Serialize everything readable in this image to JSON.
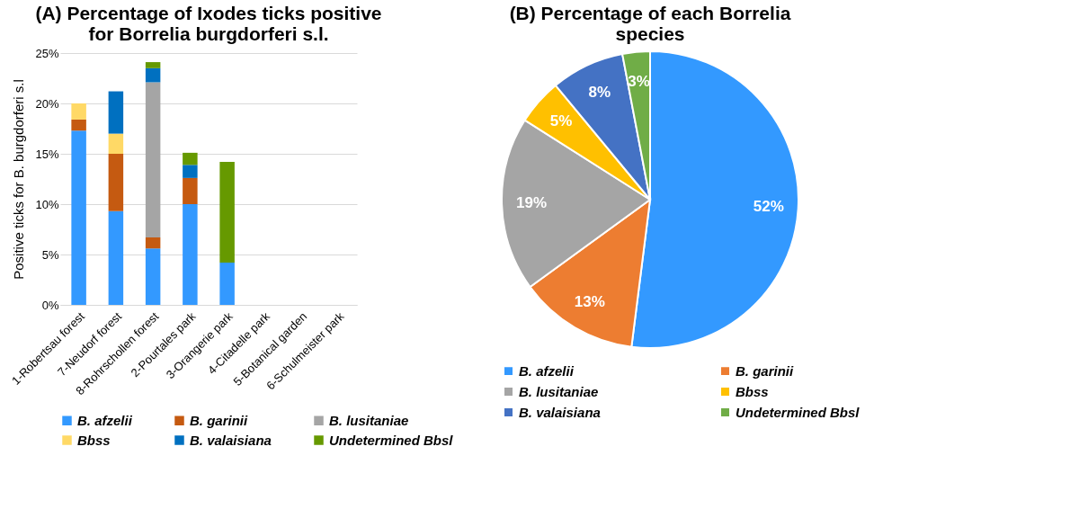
{
  "chart_data": [
    {
      "type": "bar",
      "title": "(A) Percentage of Ixodes ticks positive\nfor Borrelia burgdorferi s.l.",
      "ylabel": "Positive ticks for  B. burgdorferi s.l",
      "categories": [
        "1-Robertsau forest",
        "7-Neudorf forest",
        "8-Rohrschollen forest",
        "2-Pourtales park",
        "3-Orangerie park",
        "4-Citadelle park",
        "5-Botanical garden",
        "6-Schulmeister park"
      ],
      "stacked": true,
      "grid": "y",
      "legend": "bottom",
      "ylim": [
        0,
        25
      ],
      "yticks": [
        {
          "value": 0,
          "label": "0%"
        },
        {
          "value": 5,
          "label": "5%"
        },
        {
          "value": 10,
          "label": "10%"
        },
        {
          "value": 15,
          "label": "15%"
        },
        {
          "value": 20,
          "label": "20%"
        },
        {
          "value": 25,
          "label": "25%"
        }
      ],
      "series": [
        {
          "name": "B. afzelii",
          "color": "#3399ff",
          "values": [
            17.3,
            9.3,
            5.6,
            10.0,
            4.2,
            null,
            null,
            null
          ]
        },
        {
          "name": "B. garinii",
          "color": "#c55a11",
          "values": [
            1.1,
            5.7,
            1.1,
            2.6,
            null,
            null,
            null,
            null
          ]
        },
        {
          "name": "B. lusitaniae",
          "color": "#a5a5a5",
          "values": [
            null,
            null,
            15.4,
            null,
            null,
            null,
            null,
            null
          ]
        },
        {
          "name": "Bbss",
          "color": "#ffd966",
          "values": [
            1.6,
            2.0,
            null,
            null,
            null,
            null,
            null,
            null
          ]
        },
        {
          "name": "B. valaisiana",
          "color": "#0070c0",
          "values": [
            null,
            4.2,
            1.4,
            1.3,
            null,
            null,
            null,
            null
          ]
        },
        {
          "name": "Undetermined Bbsl",
          "color": "#669900",
          "values": [
            null,
            null,
            0.6,
            1.2,
            10.0,
            null,
            null,
            null
          ]
        }
      ]
    },
    {
      "type": "pie",
      "title": "(B) Percentage of each Borrelia\nspecies",
      "legend": "bottom",
      "categories": [
        "B. afzelii",
        "B. garinii",
        "B. lusitaniae",
        "Bbss",
        "B. valaisiana",
        "Undetermined Bbsl"
      ],
      "values": [
        52,
        13,
        19,
        5,
        8,
        3
      ],
      "value_labels": [
        "52%",
        "13%",
        "19%",
        "5%",
        "8%",
        "3%"
      ],
      "colors": [
        "#3399ff",
        "#ed7d31",
        "#a5a5a5",
        "#ffc000",
        "#4472c4",
        "#70ad47"
      ]
    }
  ]
}
